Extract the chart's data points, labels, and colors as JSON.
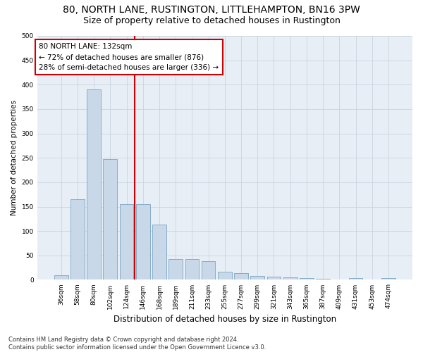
{
  "title": "80, NORTH LANE, RUSTINGTON, LITTLEHAMPTON, BN16 3PW",
  "subtitle": "Size of property relative to detached houses in Rustington",
  "xlabel": "Distribution of detached houses by size in Rustington",
  "ylabel": "Number of detached properties",
  "categories": [
    "36sqm",
    "58sqm",
    "80sqm",
    "102sqm",
    "124sqm",
    "146sqm",
    "168sqm",
    "189sqm",
    "211sqm",
    "233sqm",
    "255sqm",
    "277sqm",
    "299sqm",
    "321sqm",
    "343sqm",
    "365sqm",
    "387sqm",
    "409sqm",
    "431sqm",
    "453sqm",
    "474sqm"
  ],
  "values": [
    10,
    165,
    390,
    248,
    155,
    155,
    113,
    42,
    42,
    38,
    17,
    14,
    8,
    7,
    5,
    4,
    2,
    0,
    3,
    0,
    4
  ],
  "bar_color": "#c8d8e8",
  "bar_edge_color": "#6699bb",
  "property_line_x": 4.5,
  "property_line_color": "#cc0000",
  "annotation_line1": "80 NORTH LANE: 132sqm",
  "annotation_line2": "← 72% of detached houses are smaller (876)",
  "annotation_line3": "28% of semi-detached houses are larger (336) →",
  "annotation_box_color": "#ffffff",
  "annotation_box_edge_color": "#cc0000",
  "ylim": [
    0,
    500
  ],
  "yticks": [
    0,
    50,
    100,
    150,
    200,
    250,
    300,
    350,
    400,
    450,
    500
  ],
  "grid_color": "#c8d4e0",
  "background_color": "#e8eef5",
  "footer": "Contains HM Land Registry data © Crown copyright and database right 2024.\nContains public sector information licensed under the Open Government Licence v3.0.",
  "title_fontsize": 10,
  "subtitle_fontsize": 9,
  "xlabel_fontsize": 8.5,
  "ylabel_fontsize": 7.5,
  "tick_fontsize": 6.5,
  "annotation_fontsize": 7.5,
  "footer_fontsize": 6
}
